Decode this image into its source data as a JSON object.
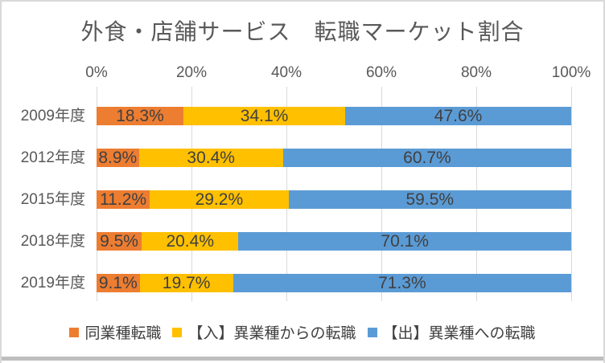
{
  "title": "外食・店舗サービス　転職マーケット割合",
  "colors": {
    "same_industry": "#ED7D31",
    "from_other_industry": "#FFC000",
    "to_other_industry": "#5B9BD5",
    "gridline": "#D9D9D9",
    "axis_text": "#595959",
    "label_text": "#404040"
  },
  "chart_data": {
    "type": "bar",
    "orientation": "horizontal",
    "stacked": true,
    "title": "外食・店舗サービス　転職マーケット割合",
    "categories": [
      "2009年度",
      "2012年度",
      "2015年度",
      "2018年度",
      "2019年度"
    ],
    "series": [
      {
        "name": "同業種転職",
        "color": "#ED7D31",
        "values": [
          18.3,
          8.9,
          11.2,
          9.5,
          9.1
        ]
      },
      {
        "name": "【入】異業種からの転職",
        "color": "#FFC000",
        "values": [
          34.1,
          30.4,
          29.2,
          20.4,
          19.7
        ]
      },
      {
        "name": "【出】異業種への転職",
        "color": "#5B9BD5",
        "values": [
          47.6,
          60.7,
          59.5,
          70.1,
          71.3
        ]
      }
    ],
    "data_labels": [
      [
        "18.3%",
        "34.1%",
        "47.6%"
      ],
      [
        "8.9%",
        "30.4%",
        "60.7%"
      ],
      [
        "11.2%",
        "29.2%",
        "59.5%"
      ],
      [
        "9.5%",
        "20.4%",
        "70.1%"
      ],
      [
        "9.1%",
        "19.7%",
        "71.3%"
      ]
    ],
    "xlabel": "",
    "ylabel": "",
    "x_axis": {
      "ticks": [
        "0%",
        "20%",
        "40%",
        "60%",
        "80%",
        "100%"
      ],
      "range": [
        0,
        100
      ],
      "grid": true
    },
    "legend_position": "bottom"
  }
}
